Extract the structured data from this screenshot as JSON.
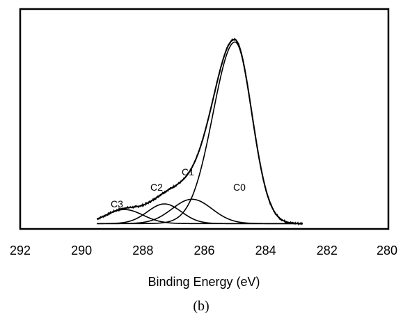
{
  "chart_data": {
    "type": "line",
    "title": "",
    "xlabel": "Binding Energy (eV)",
    "ylabel": "",
    "xlim": [
      292,
      280
    ],
    "x_reversed": true,
    "ylim": [
      0,
      1.0
    ],
    "x_ticks": [
      "292",
      "290",
      "288",
      "286",
      "284",
      "282",
      "280"
    ],
    "grid": false,
    "legend": "none",
    "caption": "(b)",
    "peaks": [
      {
        "name": "C0",
        "center": 285.0,
        "height": 0.97,
        "sigma": 0.55,
        "tail": 0.05
      },
      {
        "name": "C1",
        "center": 286.4,
        "height": 0.13,
        "sigma": 0.65,
        "tail": 0.0
      },
      {
        "name": "C2",
        "center": 287.3,
        "height": 0.105,
        "sigma": 0.55,
        "tail": 0.0
      },
      {
        "name": "C3",
        "center": 288.6,
        "height": 0.075,
        "sigma": 0.6,
        "tail": 0.0
      }
    ],
    "series": [
      {
        "values_from": "sum_of_peaks",
        "x_range": [
          289.5,
          282.8
        ],
        "noisy": true
      }
    ],
    "baseline": 0.01
  },
  "colors": {
    "line": "#000000",
    "frame": "#000000"
  }
}
